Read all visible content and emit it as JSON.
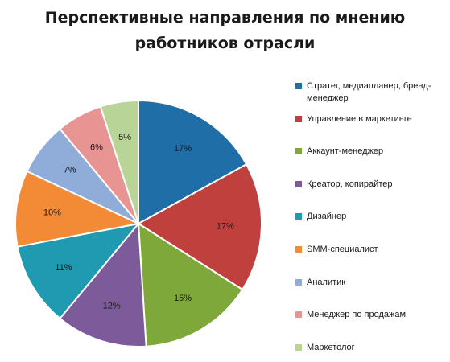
{
  "chart_data": {
    "type": "pie",
    "title": [
      "Перспективные направления по мнению",
      "работников отрасли"
    ],
    "categories": [
      "Стратег, медиапланер, бренд-менеджер",
      "Управление в маркетинге",
      "Аккаунт-менеджер",
      "Креатор, копирайтер",
      "Дизайнер",
      "SMM-специалист",
      "Аналитик",
      "Менеджер по продажам",
      "Маркетолог"
    ],
    "values": [
      17,
      17,
      15,
      12,
      11,
      10,
      7,
      6,
      5
    ],
    "labels": [
      "17%",
      "17%",
      "15%",
      "12%",
      "11%",
      "10%",
      "7%",
      "6%",
      "5%"
    ],
    "colors": [
      "#1f6ea8",
      "#c0403d",
      "#7ea83a",
      "#7d5a9a",
      "#1f9ab0",
      "#f28a36",
      "#8fadd8",
      "#e89493",
      "#b8d597"
    ],
    "legend_position": "right",
    "start_angle": "top",
    "direction": "clockwise"
  }
}
